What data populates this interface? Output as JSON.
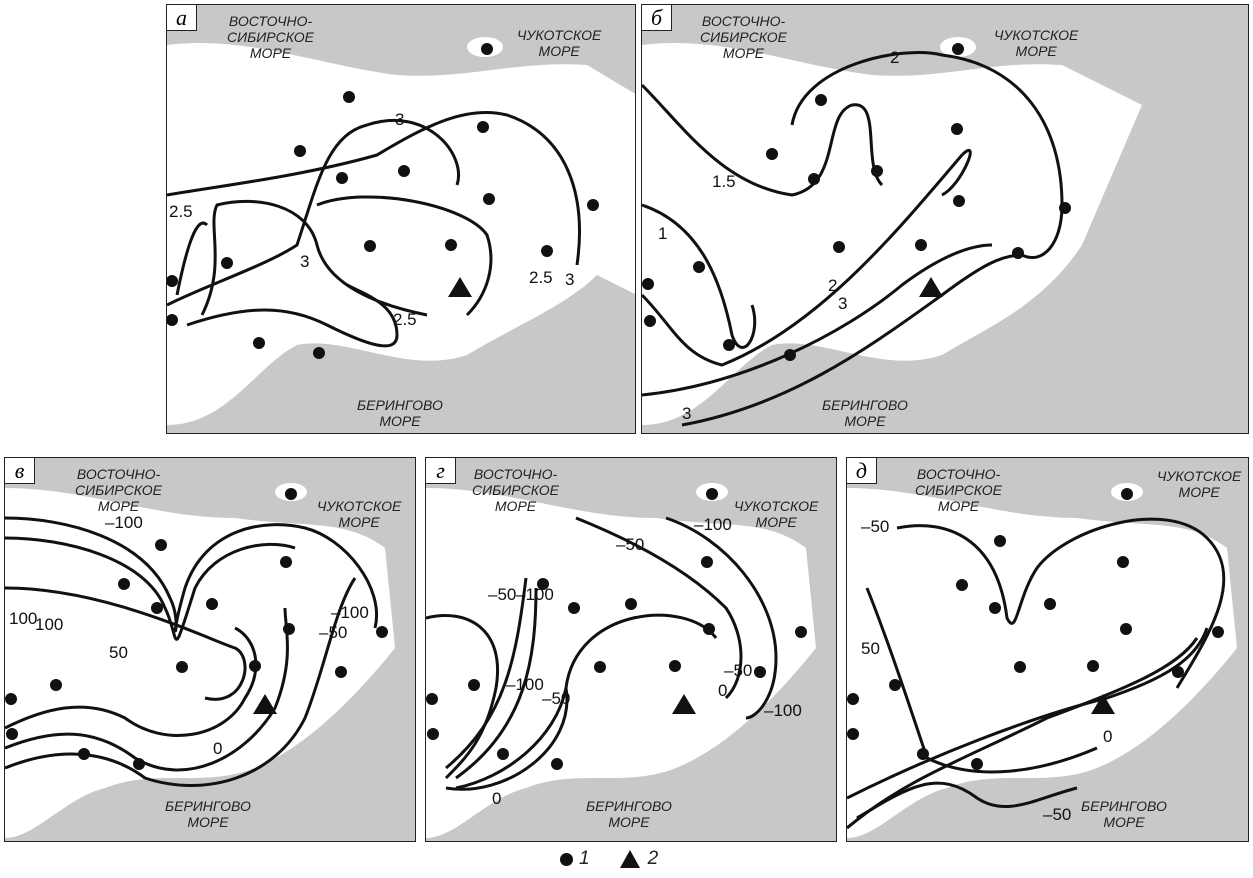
{
  "legend": {
    "station_label": "1",
    "volcano_label": "2"
  },
  "panels": [
    {
      "letter": "а",
      "seas": {
        "east_siberian": "ВОСТОЧНО-\nСИБИРСКОЕ\nМОРЕ",
        "chukchi": "ЧУКОТСКОЕ\nМОРЕ",
        "bering": "БЕРИНГОВО\nМОРЕ"
      },
      "contour_labels": [
        "3",
        "2.5",
        "3",
        "2.5",
        "2.5",
        "3"
      ]
    },
    {
      "letter": "б",
      "seas": {
        "east_siberian": "ВОСТОЧНО-\nСИБИРСКОЕ\nМОРЕ",
        "chukchi": "ЧУКОТСКОЕ\nМОРЕ",
        "bering": "БЕРИНГОВО\nМОРЕ"
      },
      "contour_labels": [
        "2",
        "1.5",
        "1",
        "2",
        "3",
        "3"
      ]
    },
    {
      "letter": "в",
      "seas": {
        "east_siberian": "ВОСТОЧНО-\nСИБИРСКОЕ\nМОРЕ",
        "chukchi": "ЧУКОТСКОЕ\nМОРЕ",
        "bering": "БЕРИНГОВО\nМОРЕ"
      },
      "contour_labels": [
        "100",
        "–100",
        "100",
        "50",
        "–50",
        "–100",
        "0"
      ]
    },
    {
      "letter": "г",
      "seas": {
        "east_siberian": "ВОСТОЧНО-\nСИБИРСКОЕ\nМОРЕ",
        "chukchi": "ЧУКОТСКОЕ\nМОРЕ",
        "bering": "БЕРИНГОВО\nМОРЕ"
      },
      "contour_labels": [
        "–50",
        "–100",
        "–100",
        "–50",
        "0",
        "–50",
        "–100",
        "–50",
        "–100",
        "0"
      ]
    },
    {
      "letter": "д",
      "seas": {
        "east_siberian": "ВОСТОЧНО-\nСИБИРСКОЕ\nМОРЕ",
        "chukchi": "ЧУКОТСКОЕ\nМОРЕ",
        "bering": "БЕРИНГОВО\nМОРЕ"
      },
      "contour_labels": [
        "–50",
        "50",
        "0",
        "–50"
      ]
    }
  ],
  "colors": {
    "sea": "#c8c8c8",
    "land": "#ffffff",
    "contour": "#111111",
    "station": "#111111"
  }
}
